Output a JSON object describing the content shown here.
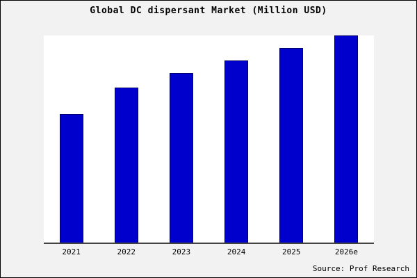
{
  "title": "Global DC dispersant Market (Million USD)",
  "source": "Source: Prof Research",
  "colors": {
    "bar": "#0000cc",
    "bar_border": "#000066",
    "background": "#f2f2f2",
    "plot_background": "#ffffff",
    "axis": "#444444"
  },
  "chart_data": {
    "type": "bar",
    "categories": [
      "2021",
      "2022",
      "2023",
      "2024",
      "2025",
      "2026e"
    ],
    "values": [
      62,
      75,
      82,
      88,
      94,
      100
    ],
    "title": "Global DC dispersant Market (Million USD)",
    "xlabel": "",
    "ylabel": "",
    "ylim": [
      0,
      100
    ],
    "grid": false,
    "legend": "none",
    "series_color": "#0000cc"
  }
}
